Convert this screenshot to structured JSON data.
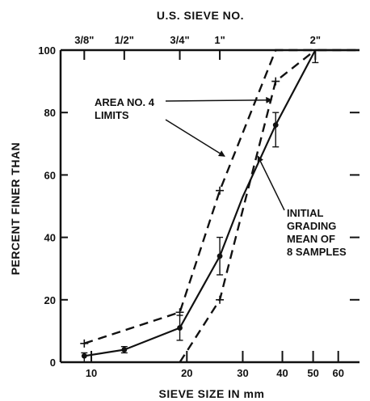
{
  "chart_data": {
    "type": "line",
    "xlabel": "SIEVE SIZE IN mm",
    "ylabel": "PERCENT FINER THAN",
    "top_axis_label": "U.S. SIEVE NO.",
    "x_scale": "log",
    "xlim": [
      8,
      70
    ],
    "ylim": [
      0,
      100
    ],
    "x_ticks": [
      10,
      20,
      30,
      40,
      50,
      60
    ],
    "y_ticks": [
      0,
      20,
      40,
      60,
      80,
      100
    ],
    "top_ticks": [
      {
        "label": "3/8\"",
        "mm": 9.5
      },
      {
        "label": "1/2\"",
        "mm": 12.7
      },
      {
        "label": "3/4\"",
        "mm": 19.0
      },
      {
        "label": "1\"",
        "mm": 25.4
      },
      {
        "label": "2\"",
        "mm": 50.8
      }
    ],
    "series": [
      {
        "role": "lower-limit",
        "style": "dashed",
        "points": [
          [
            19.0,
            0
          ],
          [
            25.4,
            20
          ],
          [
            38.1,
            90
          ],
          [
            50.8,
            100
          ]
        ]
      },
      {
        "role": "upper-limit",
        "style": "dashed",
        "points": [
          [
            9.5,
            6
          ],
          [
            19.0,
            16
          ],
          [
            25.4,
            55
          ],
          [
            38.1,
            100
          ],
          [
            70,
            100
          ]
        ]
      },
      {
        "role": "mean",
        "style": "solid",
        "points": [
          [
            9.5,
            2
          ],
          [
            12.7,
            4
          ],
          [
            19.0,
            11
          ],
          [
            25.4,
            34
          ],
          [
            30,
            53
          ],
          [
            38.1,
            76
          ],
          [
            50.8,
            100
          ],
          [
            70,
            100
          ]
        ],
        "error_bars": [
          {
            "x": 9.5,
            "low": 0,
            "high": 3
          },
          {
            "x": 12.7,
            "low": 3,
            "high": 5
          },
          {
            "x": 19.0,
            "low": 7,
            "high": 15
          },
          {
            "x": 25.4,
            "low": 28,
            "high": 40
          },
          {
            "x": 38.1,
            "low": 69,
            "high": 80
          },
          {
            "x": 50.8,
            "low": 96,
            "high": 100
          }
        ]
      }
    ],
    "annotations": [
      {
        "id": "area",
        "lines": [
          "AREA NO. 4",
          "LIMITS"
        ]
      },
      {
        "id": "initial",
        "lines": [
          "INITIAL",
          "GRADING",
          "MEAN OF",
          "8 SAMPLES"
        ]
      }
    ]
  }
}
